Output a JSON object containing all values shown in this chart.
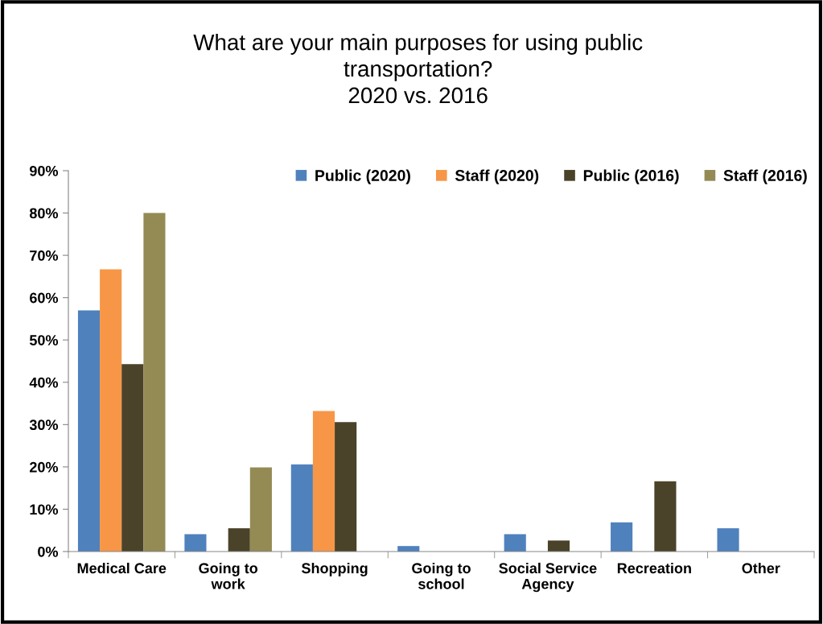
{
  "chart_data": {
    "type": "bar",
    "title": "What are your main purposes for using public\ntransportation?\n2020 vs. 2016",
    "categories": [
      "Medical Care",
      "Going to\nwork",
      "Shopping",
      "Going to\nschool",
      "Social Service\nAgency",
      "Recreation",
      "Other"
    ],
    "series": [
      {
        "name": "Public (2020)",
        "color": "#4f81bd",
        "values": [
          57,
          4.1,
          20.6,
          1.3,
          4.1,
          6.9,
          5.5
        ]
      },
      {
        "name": "Staff (2020)",
        "color": "#f79646",
        "values": [
          66.7,
          null,
          33.2,
          null,
          null,
          null,
          null
        ]
      },
      {
        "name": "Public (2016)",
        "color": "#4a4329",
        "values": [
          44.3,
          5.5,
          30.6,
          null,
          2.6,
          16.6,
          null
        ]
      },
      {
        "name": "Staff (2016)",
        "color": "#948a54",
        "values": [
          80,
          19.9,
          null,
          null,
          null,
          null,
          null
        ]
      }
    ],
    "ylim": [
      0,
      90
    ],
    "yticks": [
      {
        "value": 0,
        "label": "0%"
      },
      {
        "value": 10,
        "label": "10%"
      },
      {
        "value": 20,
        "label": "20%"
      },
      {
        "value": 30,
        "label": "30%"
      },
      {
        "value": 40,
        "label": "40%"
      },
      {
        "value": 50,
        "label": "50%"
      },
      {
        "value": 60,
        "label": "60%"
      },
      {
        "value": 70,
        "label": "70%"
      },
      {
        "value": 80,
        "label": "80%"
      },
      {
        "value": 90,
        "label": "90%"
      }
    ],
    "grid": false,
    "legend": "top right"
  }
}
